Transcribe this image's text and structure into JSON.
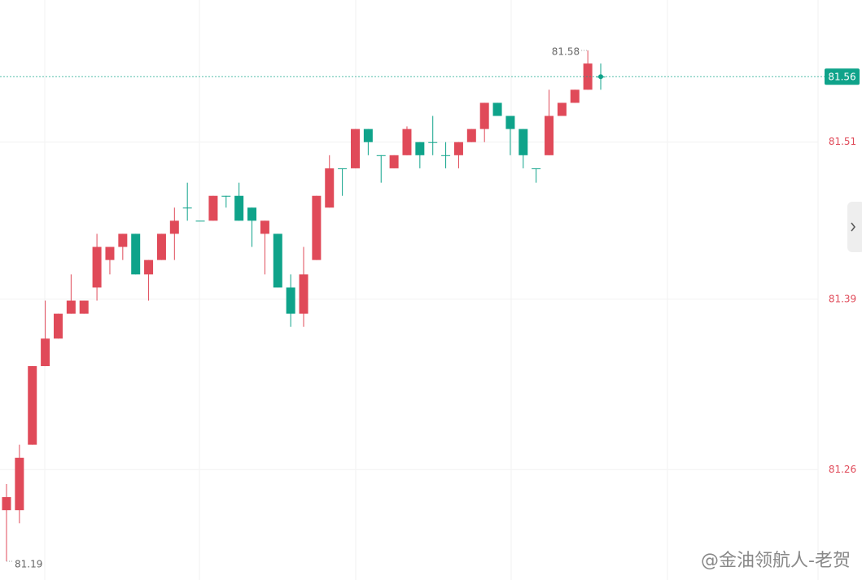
{
  "chart_data": {
    "type": "candlestick",
    "open": [
      81.229,
      81.229,
      81.279,
      81.339,
      81.36,
      81.379,
      81.379,
      81.399,
      81.42,
      81.43,
      81.44,
      81.409,
      81.42,
      81.44,
      81.46,
      81.45,
      81.45,
      81.469,
      81.469,
      81.46,
      81.44,
      81.44,
      81.399,
      81.379,
      81.42,
      81.46,
      81.49,
      81.49,
      81.52,
      81.5,
      81.49,
      81.5,
      81.51,
      81.51,
      81.5,
      81.5,
      81.51,
      81.52,
      81.54,
      81.53,
      81.52,
      81.49,
      81.5,
      81.53,
      81.54,
      81.55,
      81.56
    ],
    "high": [
      81.249,
      81.279,
      81.339,
      81.389,
      81.379,
      81.409,
      81.389,
      81.44,
      81.43,
      81.44,
      81.44,
      81.42,
      81.44,
      81.46,
      81.479,
      81.45,
      81.469,
      81.469,
      81.479,
      81.46,
      81.45,
      81.44,
      81.409,
      81.43,
      81.469,
      81.5,
      81.49,
      81.52,
      81.52,
      81.5,
      81.5,
      81.522,
      81.51,
      81.53,
      81.51,
      81.51,
      81.52,
      81.54,
      81.54,
      81.53,
      81.52,
      81.49,
      81.55,
      81.54,
      81.55,
      81.58,
      81.57
    ],
    "low": [
      81.19,
      81.219,
      81.279,
      81.339,
      81.36,
      81.379,
      81.379,
      81.389,
      81.409,
      81.42,
      81.409,
      81.389,
      81.42,
      81.42,
      81.45,
      81.45,
      81.45,
      81.46,
      81.45,
      81.43,
      81.409,
      81.399,
      81.369,
      81.369,
      81.42,
      81.46,
      81.469,
      81.49,
      81.5,
      81.479,
      81.49,
      81.5,
      81.49,
      81.5,
      81.49,
      81.49,
      81.51,
      81.51,
      81.53,
      81.5,
      81.49,
      81.479,
      81.5,
      81.53,
      81.54,
      81.55,
      81.55
    ],
    "close": [
      81.239,
      81.269,
      81.339,
      81.36,
      81.379,
      81.389,
      81.389,
      81.43,
      81.43,
      81.44,
      81.409,
      81.42,
      81.44,
      81.45,
      81.46,
      81.45,
      81.469,
      81.469,
      81.45,
      81.45,
      81.45,
      81.399,
      81.379,
      81.409,
      81.469,
      81.49,
      81.49,
      81.52,
      81.51,
      81.5,
      81.5,
      81.52,
      81.5,
      81.51,
      81.5,
      81.51,
      81.52,
      81.54,
      81.53,
      81.52,
      81.5,
      81.49,
      81.53,
      81.54,
      81.55,
      81.57,
      81.56
    ],
    "up_color": "#e04a59",
    "down_color": "#0fa38a",
    "ylim": [
      81.1757,
      81.6185
    ],
    "yticks": [
      81.51,
      81.39,
      81.26
    ],
    "grid": true,
    "high_marker": 81.58,
    "low_marker": 81.19,
    "last_price": 81.56,
    "watermark": "@金油领航人-老贺"
  }
}
